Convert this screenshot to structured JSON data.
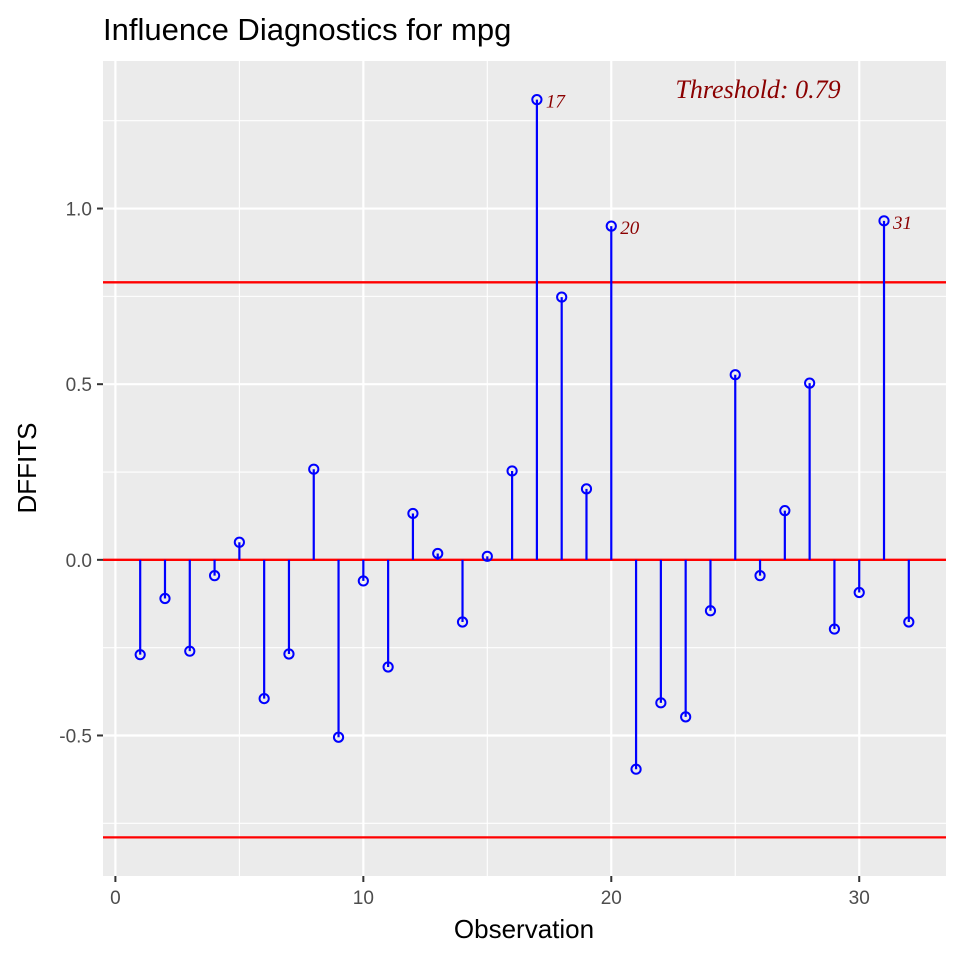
{
  "chart_data": {
    "type": "scatter",
    "subtype": "lollipop",
    "title": "Influence Diagnostics for mpg",
    "xlabel": "Observation",
    "ylabel": "DFFITS",
    "xlim": [
      -0.5,
      33.5
    ],
    "ylim": [
      -0.9,
      1.42
    ],
    "x_ticks": [
      0,
      10,
      20,
      30
    ],
    "x_tick_labels": [
      "0",
      "10",
      "20",
      "30"
    ],
    "y_ticks": [
      -0.5,
      0.0,
      0.5,
      1.0
    ],
    "y_tick_labels": [
      "-0.5",
      "0.0",
      "0.5",
      "1.0"
    ],
    "grid": true,
    "threshold": 0.79,
    "threshold_label": "Threshold: 0.79",
    "series": [
      {
        "name": "DFFITS",
        "x": [
          1,
          2,
          3,
          4,
          5,
          6,
          7,
          8,
          9,
          10,
          11,
          12,
          13,
          14,
          15,
          16,
          17,
          18,
          19,
          20,
          21,
          22,
          23,
          24,
          25,
          26,
          27,
          28,
          29,
          30,
          31,
          32
        ],
        "values": [
          -0.27,
          -0.11,
          -0.26,
          -0.045,
          0.05,
          -0.395,
          -0.268,
          0.258,
          -0.505,
          -0.06,
          -0.305,
          0.132,
          0.018,
          -0.177,
          0.01,
          0.253,
          1.31,
          0.748,
          0.202,
          0.95,
          -0.596,
          -0.407,
          -0.447,
          -0.145,
          0.527,
          -0.045,
          0.14,
          0.503,
          -0.197,
          -0.093,
          0.965,
          -0.177
        ]
      }
    ],
    "flagged_points": [
      {
        "x": 17,
        "label": "17"
      },
      {
        "x": 20,
        "label": "20"
      },
      {
        "x": 31,
        "label": "31"
      }
    ],
    "colors": {
      "stem": "#0000ff",
      "point": "#0000ff",
      "reference_lines": "#ff0000",
      "annotation": "#8b0000",
      "panel_background": "#ebebeb",
      "grid": "#ffffff"
    }
  }
}
